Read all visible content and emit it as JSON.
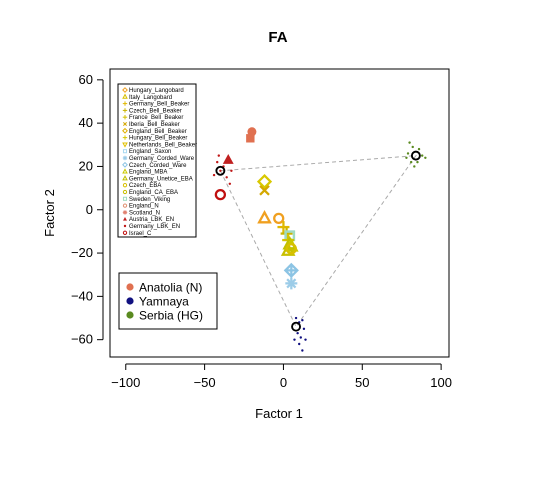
{
  "chart_data": {
    "type": "scatter",
    "title": "FA",
    "xlabel": "Factor 1",
    "ylabel": "Factor 2",
    "xlim": [
      -110,
      105
    ],
    "ylim": [
      -68,
      65
    ],
    "x_ticks": [
      -100,
      -50,
      0,
      50,
      100
    ],
    "y_ticks": [
      -60,
      -40,
      -20,
      0,
      20,
      40,
      60
    ],
    "x_tick_labels": [
      "−100",
      "−50",
      "0",
      "50",
      "100"
    ],
    "y_tick_labels": [
      "−60",
      "−40",
      "−20",
      "0",
      "20",
      "40",
      "60"
    ],
    "triangle": [
      [
        -40,
        18
      ],
      [
        84,
        25
      ],
      [
        8,
        -54
      ]
    ],
    "legend_top": [
      {
        "name": "Hungary_Langobard",
        "color": "#f0a020",
        "shape": "diamond"
      },
      {
        "name": "Italy_Langobard",
        "color": "#d8c000",
        "shape": "triangle"
      },
      {
        "name": "Germany_Bell_Beaker",
        "color": "#e0b800",
        "shape": "plus"
      },
      {
        "name": "Czech_Bell_Beaker",
        "color": "#c8b400",
        "shape": "plus"
      },
      {
        "name": "France_Bell_Beaker",
        "color": "#d4c200",
        "shape": "plus"
      },
      {
        "name": "Iberia_Bell_Beaker",
        "color": "#d4a800",
        "shape": "cross"
      },
      {
        "name": "England_Bell_Beaker",
        "color": "#e0b000",
        "shape": "diamond"
      },
      {
        "name": "Hungary_Bell_Beaker",
        "color": "#d8c800",
        "shape": "plus"
      },
      {
        "name": "Netherlands_Bell_Beaker",
        "color": "#e0c000",
        "shape": "triangle-down"
      },
      {
        "name": "England_Saxon",
        "color": "#a8d8f0",
        "shape": "square"
      },
      {
        "name": "Germany_Corded_Ware",
        "color": "#9ccce8",
        "shape": "asterisk"
      },
      {
        "name": "Czech_Corded_Ware",
        "color": "#8cc4e4",
        "shape": "diamond"
      },
      {
        "name": "England_MBA",
        "color": "#c8c800",
        "shape": "triangle"
      },
      {
        "name": "Germany_Unetice_EBA",
        "color": "#c0c000",
        "shape": "triangle"
      },
      {
        "name": "Czech_EBA",
        "color": "#d8c000",
        "shape": "circle"
      },
      {
        "name": "England_CA_EBA",
        "color": "#c8c000",
        "shape": "circle"
      },
      {
        "name": "Sweden_Viking",
        "color": "#a0dcc0",
        "shape": "square"
      },
      {
        "name": "England_N",
        "color": "#e09070",
        "shape": "circle"
      },
      {
        "name": "Scotland_N",
        "color": "#e08070",
        "shape": "asterisk"
      },
      {
        "name": "Austria_LBK_EN",
        "color": "#c02020",
        "shape": "triangle-filled"
      },
      {
        "name": "Germany_LBK_EN",
        "color": "#c01818",
        "shape": "dot"
      },
      {
        "name": "Israel_C",
        "color": "#c01010",
        "shape": "circle"
      }
    ],
    "legend_bottom": [
      {
        "name": "Anatolia (N)",
        "color": "#e07050"
      },
      {
        "name": "Yamnaya",
        "color": "#101080"
      },
      {
        "name": "Serbia (HG)",
        "color": "#5a8a20"
      }
    ],
    "points": [
      {
        "x": -20,
        "y": 36,
        "color": "#e07050",
        "shape": "dot-big"
      },
      {
        "x": -21,
        "y": 33,
        "color": "#e07050",
        "shape": "square-filled"
      },
      {
        "x": -35,
        "y": 23,
        "color": "#c02020",
        "shape": "triangle-filled"
      },
      {
        "x": -38,
        "y": 20,
        "color": "#c01818",
        "shape": "dot"
      },
      {
        "x": -40,
        "y": 18,
        "color": "#c01818",
        "shape": "dot"
      },
      {
        "x": -42,
        "y": 22,
        "color": "#c01818",
        "shape": "dot"
      },
      {
        "x": -36,
        "y": 15,
        "color": "#c01818",
        "shape": "dot"
      },
      {
        "x": -44,
        "y": 16,
        "color": "#c01818",
        "shape": "dot"
      },
      {
        "x": -34,
        "y": 12,
        "color": "#c01818",
        "shape": "dot"
      },
      {
        "x": -41,
        "y": 25,
        "color": "#c01818",
        "shape": "dot"
      },
      {
        "x": -33,
        "y": 18,
        "color": "#c01818",
        "shape": "dot"
      },
      {
        "x": -40,
        "y": 7,
        "color": "#c01010",
        "shape": "circle"
      },
      {
        "x": -40,
        "y": 18,
        "color": "#000000",
        "shape": "ring"
      },
      {
        "x": -12,
        "y": 13,
        "color": "#d8c800",
        "shape": "diamond"
      },
      {
        "x": -12,
        "y": 9,
        "color": "#d4a800",
        "shape": "cross"
      },
      {
        "x": -12,
        "y": -4,
        "color": "#f0a020",
        "shape": "triangle"
      },
      {
        "x": -3,
        "y": -4,
        "color": "#f0a020",
        "shape": "circle"
      },
      {
        "x": 0,
        "y": -8,
        "color": "#e0b800",
        "shape": "plus"
      },
      {
        "x": 2,
        "y": -11,
        "color": "#c8b400",
        "shape": "plus"
      },
      {
        "x": 4,
        "y": -12,
        "color": "#a8d8f0",
        "shape": "square"
      },
      {
        "x": 4,
        "y": -12,
        "color": "#a0dcc0",
        "shape": "square"
      },
      {
        "x": 3,
        "y": -14,
        "color": "#d4c200",
        "shape": "plus"
      },
      {
        "x": 4,
        "y": -16,
        "color": "#c0c000",
        "shape": "triangle"
      },
      {
        "x": 5,
        "y": -17,
        "color": "#c8c800",
        "shape": "triangle"
      },
      {
        "x": 3,
        "y": -19,
        "color": "#c8c000",
        "shape": "triangle"
      },
      {
        "x": 5,
        "y": -18,
        "color": "#d8c000",
        "shape": "circle"
      },
      {
        "x": 5,
        "y": -28,
        "color": "#8cc4e4",
        "shape": "diamond"
      },
      {
        "x": 5,
        "y": -28,
        "color": "#8cc4e4",
        "shape": "plus"
      },
      {
        "x": 5,
        "y": -34,
        "color": "#9ccce8",
        "shape": "asterisk"
      },
      {
        "x": 8,
        "y": -50,
        "color": "#101080",
        "shape": "dot"
      },
      {
        "x": 10,
        "y": -52,
        "color": "#101080",
        "shape": "dot"
      },
      {
        "x": 12,
        "y": -51,
        "color": "#101080",
        "shape": "dot"
      },
      {
        "x": 9,
        "y": -57,
        "color": "#101080",
        "shape": "dot"
      },
      {
        "x": 11,
        "y": -59,
        "color": "#101080",
        "shape": "dot"
      },
      {
        "x": 13,
        "y": -55,
        "color": "#101080",
        "shape": "dot"
      },
      {
        "x": 10,
        "y": -62,
        "color": "#101080",
        "shape": "dot"
      },
      {
        "x": 12,
        "y": -65,
        "color": "#101080",
        "shape": "dot"
      },
      {
        "x": 7,
        "y": -60,
        "color": "#101080",
        "shape": "dot"
      },
      {
        "x": 14,
        "y": -60,
        "color": "#101080",
        "shape": "dot"
      },
      {
        "x": 8,
        "y": -54,
        "color": "#000000",
        "shape": "ring"
      },
      {
        "x": 80,
        "y": 31,
        "color": "#5a8a20",
        "shape": "dot"
      },
      {
        "x": 82,
        "y": 29,
        "color": "#5a8a20",
        "shape": "dot"
      },
      {
        "x": 86,
        "y": 28,
        "color": "#5a8a20",
        "shape": "dot"
      },
      {
        "x": 88,
        "y": 25,
        "color": "#5a8a20",
        "shape": "dot"
      },
      {
        "x": 85,
        "y": 22,
        "color": "#5a8a20",
        "shape": "dot"
      },
      {
        "x": 81,
        "y": 22,
        "color": "#5a8a20",
        "shape": "dot"
      },
      {
        "x": 79,
        "y": 26,
        "color": "#5a8a20",
        "shape": "dot"
      },
      {
        "x": 90,
        "y": 24,
        "color": "#5a8a20",
        "shape": "dot"
      },
      {
        "x": 83,
        "y": 20,
        "color": "#5a8a20",
        "shape": "dot"
      },
      {
        "x": 78,
        "y": 24,
        "color": "#5a8a20",
        "shape": "dot"
      },
      {
        "x": 84,
        "y": 25,
        "color": "#000000",
        "shape": "ring"
      }
    ]
  }
}
